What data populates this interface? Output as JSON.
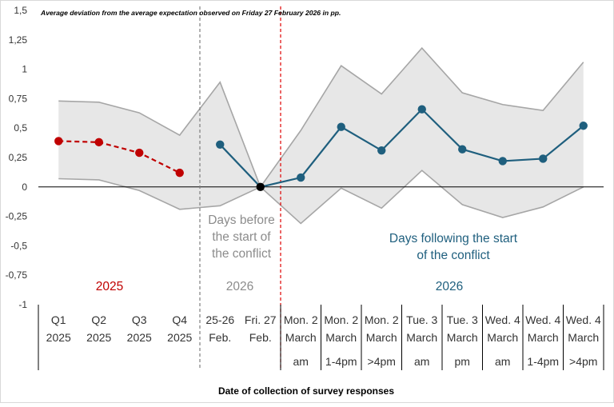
{
  "chart_data": {
    "type": "line",
    "title": "Average deviation from the average expectation observed on Friday 27 February 2026 in pp.",
    "xlabel": "Date of collection of survey responses",
    "ylabel": "",
    "ylim": [
      -1,
      1.5
    ],
    "yticks": [
      "1,5",
      "1,25",
      "1",
      "0,75",
      "0,5",
      "0,25",
      "0",
      "-0,25",
      "-0,5",
      "-0,75",
      "-1"
    ],
    "categories": [
      [
        "Q1",
        "2025"
      ],
      [
        "Q2",
        "2025"
      ],
      [
        "Q3",
        "2025"
      ],
      [
        "Q4",
        "2025"
      ],
      [
        "25-26",
        "Feb."
      ],
      [
        "Fri. 27",
        "Feb."
      ],
      [
        "Mon. 2",
        "March",
        "am"
      ],
      [
        "Mon. 2",
        "March",
        "1-4pm"
      ],
      [
        "Mon. 2",
        "March",
        ">4pm"
      ],
      [
        "Tue. 3",
        "March",
        "am"
      ],
      [
        "Tue. 3",
        "March",
        "pm"
      ],
      [
        "Wed. 4",
        "March",
        "am"
      ],
      [
        "Wed. 4",
        "March",
        "1-4pm"
      ],
      [
        "Wed. 4",
        "March",
        ">4pm"
      ]
    ],
    "series": [
      {
        "values": [
          0.39,
          0.38,
          0.29,
          0.12,
          null,
          null,
          null,
          null,
          null,
          null,
          null,
          null,
          null,
          null
        ],
        "color": "#c00000",
        "style": "dashed"
      },
      {
        "values": [
          null,
          null,
          null,
          null,
          0.36,
          0.0,
          0.08,
          0.51,
          0.31,
          0.66,
          0.32,
          0.22,
          0.24,
          0.52
        ],
        "color": "#1f5f7e",
        "style": "solid"
      }
    ],
    "band": {
      "upper": [
        0.73,
        0.72,
        0.63,
        0.44,
        0.89,
        0.0,
        0.48,
        1.03,
        0.79,
        1.18,
        0.8,
        0.7,
        0.65,
        1.06
      ],
      "lower": [
        0.07,
        0.06,
        -0.03,
        -0.19,
        -0.16,
        0.0,
        -0.31,
        -0.01,
        -0.18,
        0.14,
        -0.15,
        -0.26,
        -0.17,
        0.0
      ],
      "fill": "#e7e7e7",
      "stroke": "#a6a6a6"
    },
    "annotations": [
      {
        "text": [
          "Days before",
          "the start of",
          "the conflict"
        ],
        "color": "#8c8c8c"
      },
      {
        "text": [
          "Days following the start",
          "of the conflict"
        ],
        "color": "#1f5f7e"
      },
      {
        "text": [
          "2025"
        ],
        "color": "#c00000"
      },
      {
        "text": [
          "2026"
        ],
        "color": "#8c8c8c"
      },
      {
        "text": [
          "2026"
        ],
        "color": "#1f5f7e"
      }
    ],
    "vertical_lines": [
      {
        "after_category": 3,
        "color": "#7f7f7f",
        "style": "dashed"
      },
      {
        "after_category": 5,
        "color": "#e00000",
        "style": "dashed"
      }
    ],
    "grid": false
  }
}
